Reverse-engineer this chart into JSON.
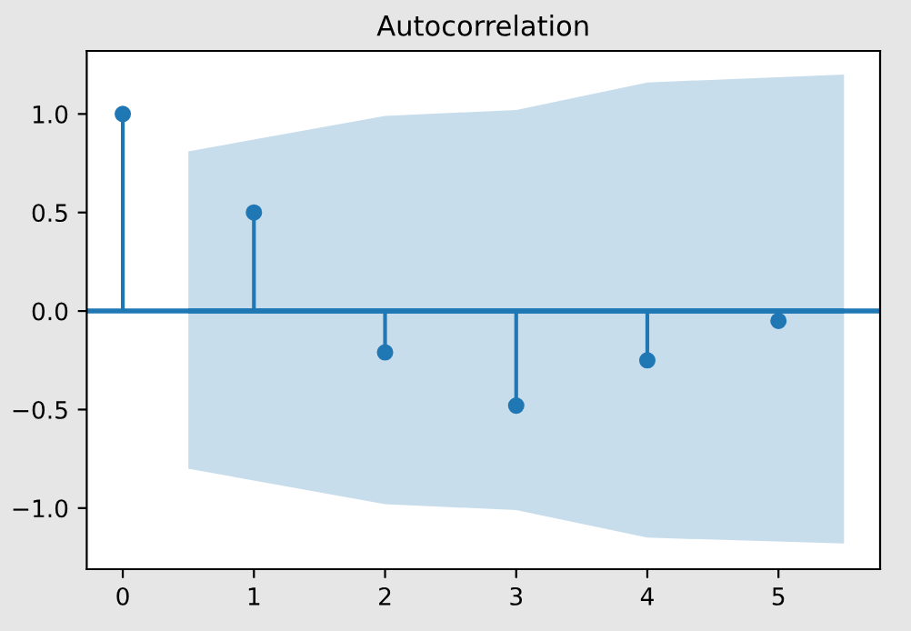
{
  "chart_data": {
    "type": "lollipop",
    "title": "Autocorrelation",
    "series": [
      {
        "type": "line",
        "marker": "none",
        "color": "#1f77b4",
        "x": [
          0.5,
          2,
          3,
          4,
          5.5
        ],
        "values": [
          0,
          0,
          0,
          0,
          0
        ],
        "lower": [
          -0.8,
          -0.98,
          -1.01,
          -1.15,
          -1.18
        ],
        "upper": [
          0.81,
          0.99,
          1.02,
          1.16,
          1.2
        ]
      },
      {
        "type": "lollipop",
        "marker": "circle",
        "color": "#1f77b4",
        "x": [
          0,
          1,
          2,
          3,
          4,
          5
        ],
        "values": [
          1.0,
          0.5,
          -0.21,
          -0.48,
          -0.25,
          -0.05
        ]
      }
    ],
    "ref_lines": [
      {
        "axis": "y",
        "value": 0,
        "color": "#1f77b4"
      }
    ],
    "grid": false,
    "legend": false,
    "xlim": [
      -0.275,
      5.775
    ],
    "xticks": [
      0,
      1,
      2,
      3,
      4,
      5
    ],
    "ylim": [
      -1.31,
      1.32
    ],
    "yticks": [
      {
        "value": -1,
        "label": "−1.0"
      },
      {
        "value": -0.5,
        "label": "−0.5"
      },
      {
        "value": 0,
        "label": "0.0"
      },
      {
        "value": 0.5,
        "label": "0.5"
      },
      {
        "value": 1,
        "label": "1.0"
      }
    ]
  }
}
